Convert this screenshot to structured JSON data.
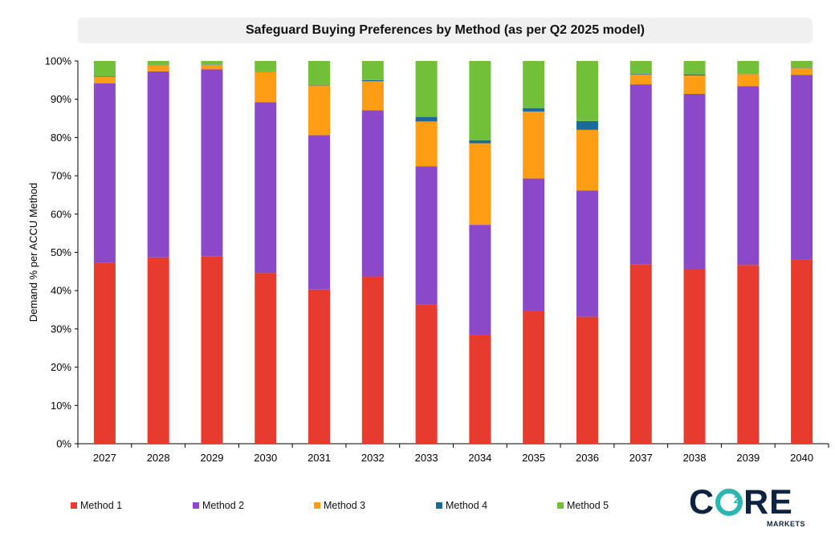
{
  "chart_data": {
    "type": "bar",
    "stacked": true,
    "title": "Safeguard Buying Preferences by Method (as per Q2 2025 model)",
    "ylabel": "Demand % per ACCU Method",
    "xlabel": "",
    "ylim": [
      0,
      100
    ],
    "yticks": [
      "0%",
      "10%",
      "20%",
      "30%",
      "40%",
      "50%",
      "60%",
      "70%",
      "80%",
      "90%",
      "100%"
    ],
    "categories": [
      "2027",
      "2028",
      "2029",
      "2030",
      "2031",
      "2032",
      "2033",
      "2034",
      "2035",
      "2036",
      "2037",
      "2038",
      "2039",
      "2040"
    ],
    "series": [
      {
        "name": "Method 1",
        "color": "#e63b2e",
        "values": [
          47.2,
          48.7,
          48.9,
          44.6,
          40.3,
          43.7,
          36.3,
          28.5,
          34.6,
          33.2,
          46.9,
          45.7,
          46.7,
          48.2
        ]
      },
      {
        "name": "Method 2",
        "color": "#8b48c8",
        "values": [
          47.0,
          48.6,
          48.9,
          44.6,
          40.3,
          43.4,
          36.2,
          28.7,
          34.7,
          33.0,
          47.0,
          45.7,
          46.7,
          48.2
        ]
      },
      {
        "name": "Method 3",
        "color": "#ff9d15",
        "values": [
          1.6,
          1.6,
          1.2,
          8.0,
          13.0,
          7.6,
          11.7,
          21.3,
          17.5,
          15.8,
          2.6,
          4.8,
          3.2,
          1.8
        ]
      },
      {
        "name": "Method 4",
        "color": "#1a6b9a",
        "values": [
          0.1,
          0.1,
          0.1,
          0.1,
          0.1,
          0.3,
          1.2,
          0.8,
          0.9,
          2.3,
          0.2,
          0.3,
          0.1,
          0.1
        ]
      },
      {
        "name": "Method 5",
        "color": "#72c03a",
        "values": [
          4.1,
          1.0,
          0.9,
          2.7,
          6.3,
          5.0,
          14.6,
          20.7,
          12.3,
          15.7,
          3.3,
          3.5,
          3.3,
          1.7
        ]
      }
    ],
    "grid": false,
    "legend_position": "bottom"
  },
  "logo": {
    "main_left": "C",
    "main_right": "RE",
    "subscript": "2",
    "sub_text": "MARKETS"
  }
}
